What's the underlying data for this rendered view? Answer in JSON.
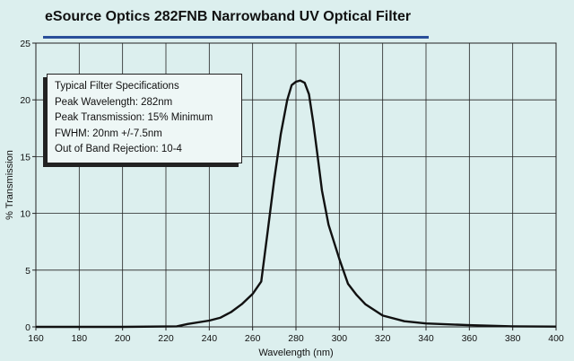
{
  "chart_data": {
    "type": "line",
    "title": "eSource Optics 282FNB Narrowband UV Optical Filter",
    "xlabel": "Wavelength (nm)",
    "ylabel": "% Transmission",
    "xlim": [
      160,
      400
    ],
    "ylim": [
      0,
      25
    ],
    "xticks": [
      160,
      180,
      200,
      220,
      240,
      260,
      280,
      300,
      320,
      340,
      360,
      380,
      400
    ],
    "yticks": [
      0,
      5,
      10,
      15,
      20,
      25
    ],
    "grid": true,
    "legend": "none",
    "series": [
      {
        "x": [
          160,
          200,
          225,
          230,
          240,
          245,
          250,
          255,
          260,
          264,
          267,
          270,
          273,
          276,
          278,
          280,
          282,
          284,
          286,
          288,
          290,
          292,
          295,
          300,
          304,
          308,
          312,
          320,
          330,
          340,
          360,
          380,
          400
        ],
        "y": [
          0,
          0,
          0.05,
          0.25,
          0.55,
          0.8,
          1.3,
          2.0,
          2.9,
          4.0,
          8.5,
          13.0,
          17.0,
          20.0,
          21.3,
          21.6,
          21.7,
          21.5,
          20.5,
          18.0,
          15.0,
          12.0,
          9.0,
          6.0,
          3.8,
          2.8,
          2.0,
          1.0,
          0.5,
          0.3,
          0.15,
          0.05,
          0.02
        ]
      }
    ],
    "annotation": {
      "lines": [
        "Typical Filter Specifications",
        "Peak Wavelength: 282nm",
        "Peak Transmission: 15% Minimum",
        "FWHM: 20nm +/-7.5nm",
        "Out of Band Rejection: 10-4"
      ]
    }
  },
  "colors": {
    "background": "#dcefee",
    "grid": "#222222",
    "curve": "#111111",
    "title_rule": "#2a4f9a"
  }
}
